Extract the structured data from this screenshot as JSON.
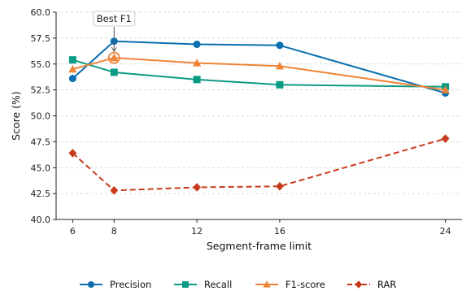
{
  "chart_data": {
    "type": "line",
    "title": "",
    "xlabel": "Segment-frame limit",
    "ylabel": "Score (%)",
    "x": [
      6,
      8,
      12,
      16,
      24
    ],
    "xticks": [
      "6",
      "8",
      "12",
      "16",
      "24"
    ],
    "xlim": [
      5.2,
      24.8
    ],
    "ylim": [
      40.0,
      60.0
    ],
    "yticks": [
      "40.0",
      "42.5",
      "45.0",
      "47.5",
      "50.0",
      "52.5",
      "55.0",
      "57.5",
      "60.0"
    ],
    "grid": "horizontal-dashed",
    "legend_position": "bottom",
    "series": [
      {
        "name": "Precision",
        "color": "#0a6fb0",
        "marker": "circle",
        "dash": "solid",
        "values": [
          53.6,
          57.2,
          56.9,
          56.8,
          52.2
        ]
      },
      {
        "name": "Recall",
        "color": "#0b9b84",
        "marker": "square",
        "dash": "solid",
        "values": [
          55.4,
          54.2,
          53.5,
          53.0,
          52.8
        ]
      },
      {
        "name": "F1-score",
        "color": "#ef8438",
        "marker": "triangle",
        "dash": "solid",
        "values": [
          54.5,
          55.6,
          55.1,
          54.8,
          52.5
        ]
      },
      {
        "name": "RAR",
        "color": "#c93a1c",
        "marker": "diamond",
        "dash": "dashed",
        "values": [
          46.4,
          42.8,
          43.1,
          43.2,
          47.8
        ]
      }
    ],
    "annotation": {
      "text": "Best F1",
      "x": 8,
      "y": 55.6,
      "series": "F1-score"
    }
  }
}
